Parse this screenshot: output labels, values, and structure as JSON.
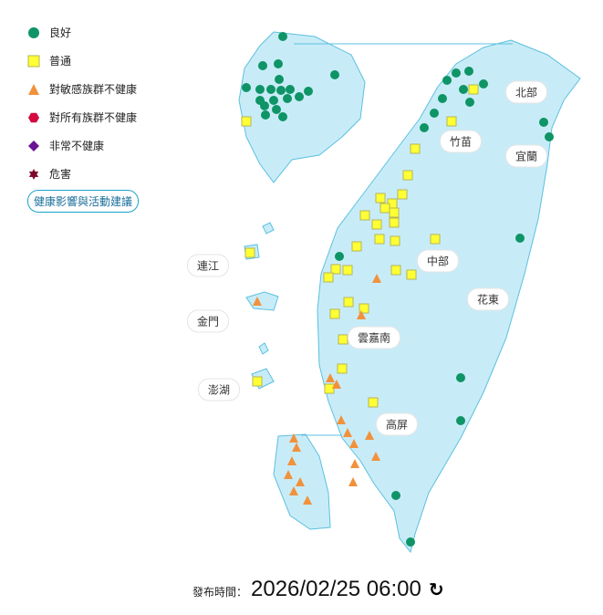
{
  "legend": {
    "items": [
      {
        "label": "良好",
        "shape": "circle",
        "color": "#0e9466"
      },
      {
        "label": "普通",
        "shape": "square",
        "color": "#ffff33"
      },
      {
        "label": "對敏感族群不健康",
        "shape": "triangle",
        "color": "#f2913b"
      },
      {
        "label": "對所有族群不健康",
        "shape": "hexagon",
        "color": "#d3093f"
      },
      {
        "label": "非常不健康",
        "shape": "diamond",
        "color": "#6a1396"
      },
      {
        "label": "危害",
        "shape": "star",
        "color": "#7b0a2a"
      }
    ],
    "advice_button": "健康影響與活動建議"
  },
  "regions": [
    "北部",
    "竹苗",
    "宜蘭",
    "中部",
    "花東",
    "雲嘉南",
    "高屏",
    "連江",
    "金門",
    "澎湖"
  ],
  "publish": {
    "label": "發布時間：",
    "time": "2026/02/25 06:00",
    "refresh_icon": "refresh-icon"
  },
  "map": {
    "land_color": "#c8ecf7",
    "border_color": "#5bc0e0"
  }
}
